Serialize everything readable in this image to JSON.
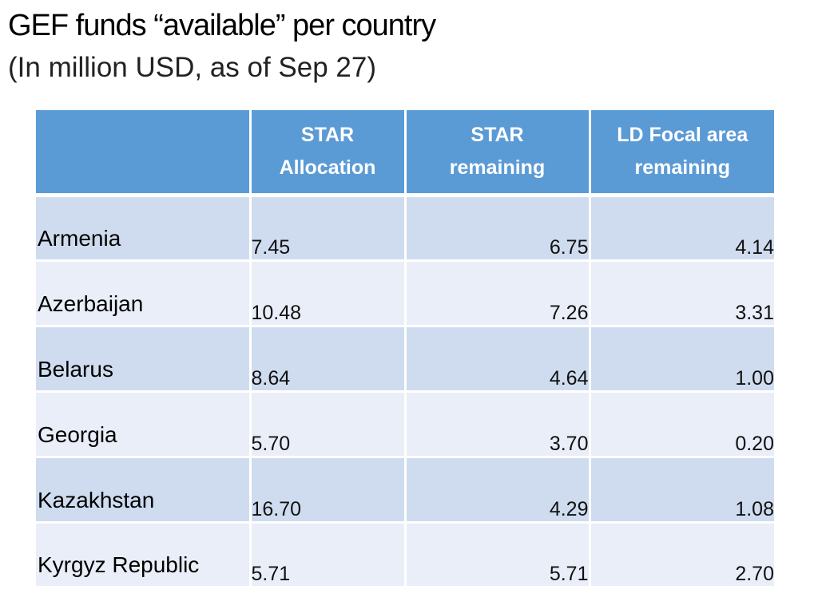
{
  "slide": {
    "title": "GEF funds “available” per country",
    "subtitle": "(In million USD, as of Sep 27)"
  },
  "table": {
    "headers": {
      "country": "",
      "star_allocation": "STAR\nAllocation",
      "star_remaining": "STAR\nremaining",
      "ld_remaining": "LD Focal area\nremaining"
    },
    "rows": [
      {
        "country": "Armenia",
        "star_allocation": "7.45",
        "star_remaining": "6.75",
        "ld_remaining": "4.14"
      },
      {
        "country": "Azerbaijan",
        "star_allocation": "10.48",
        "star_remaining": "7.26",
        "ld_remaining": "3.31"
      },
      {
        "country": "Belarus",
        "star_allocation": "8.64",
        "star_remaining": "4.64",
        "ld_remaining": "1.00"
      },
      {
        "country": "Georgia",
        "star_allocation": "5.70",
        "star_remaining": "3.70",
        "ld_remaining": "0.20"
      },
      {
        "country": "Kazakhstan",
        "star_allocation": "16.70",
        "star_remaining": "4.29",
        "ld_remaining": "1.08"
      },
      {
        "country": "Kyrgyz Republic",
        "star_allocation": "5.71",
        "star_remaining": "5.71",
        "ld_remaining": "2.70"
      }
    ]
  },
  "colors": {
    "header_bg": "#5b9bd5",
    "row_band_dark": "#cfdcef",
    "row_band_light": "#e9eef8"
  }
}
